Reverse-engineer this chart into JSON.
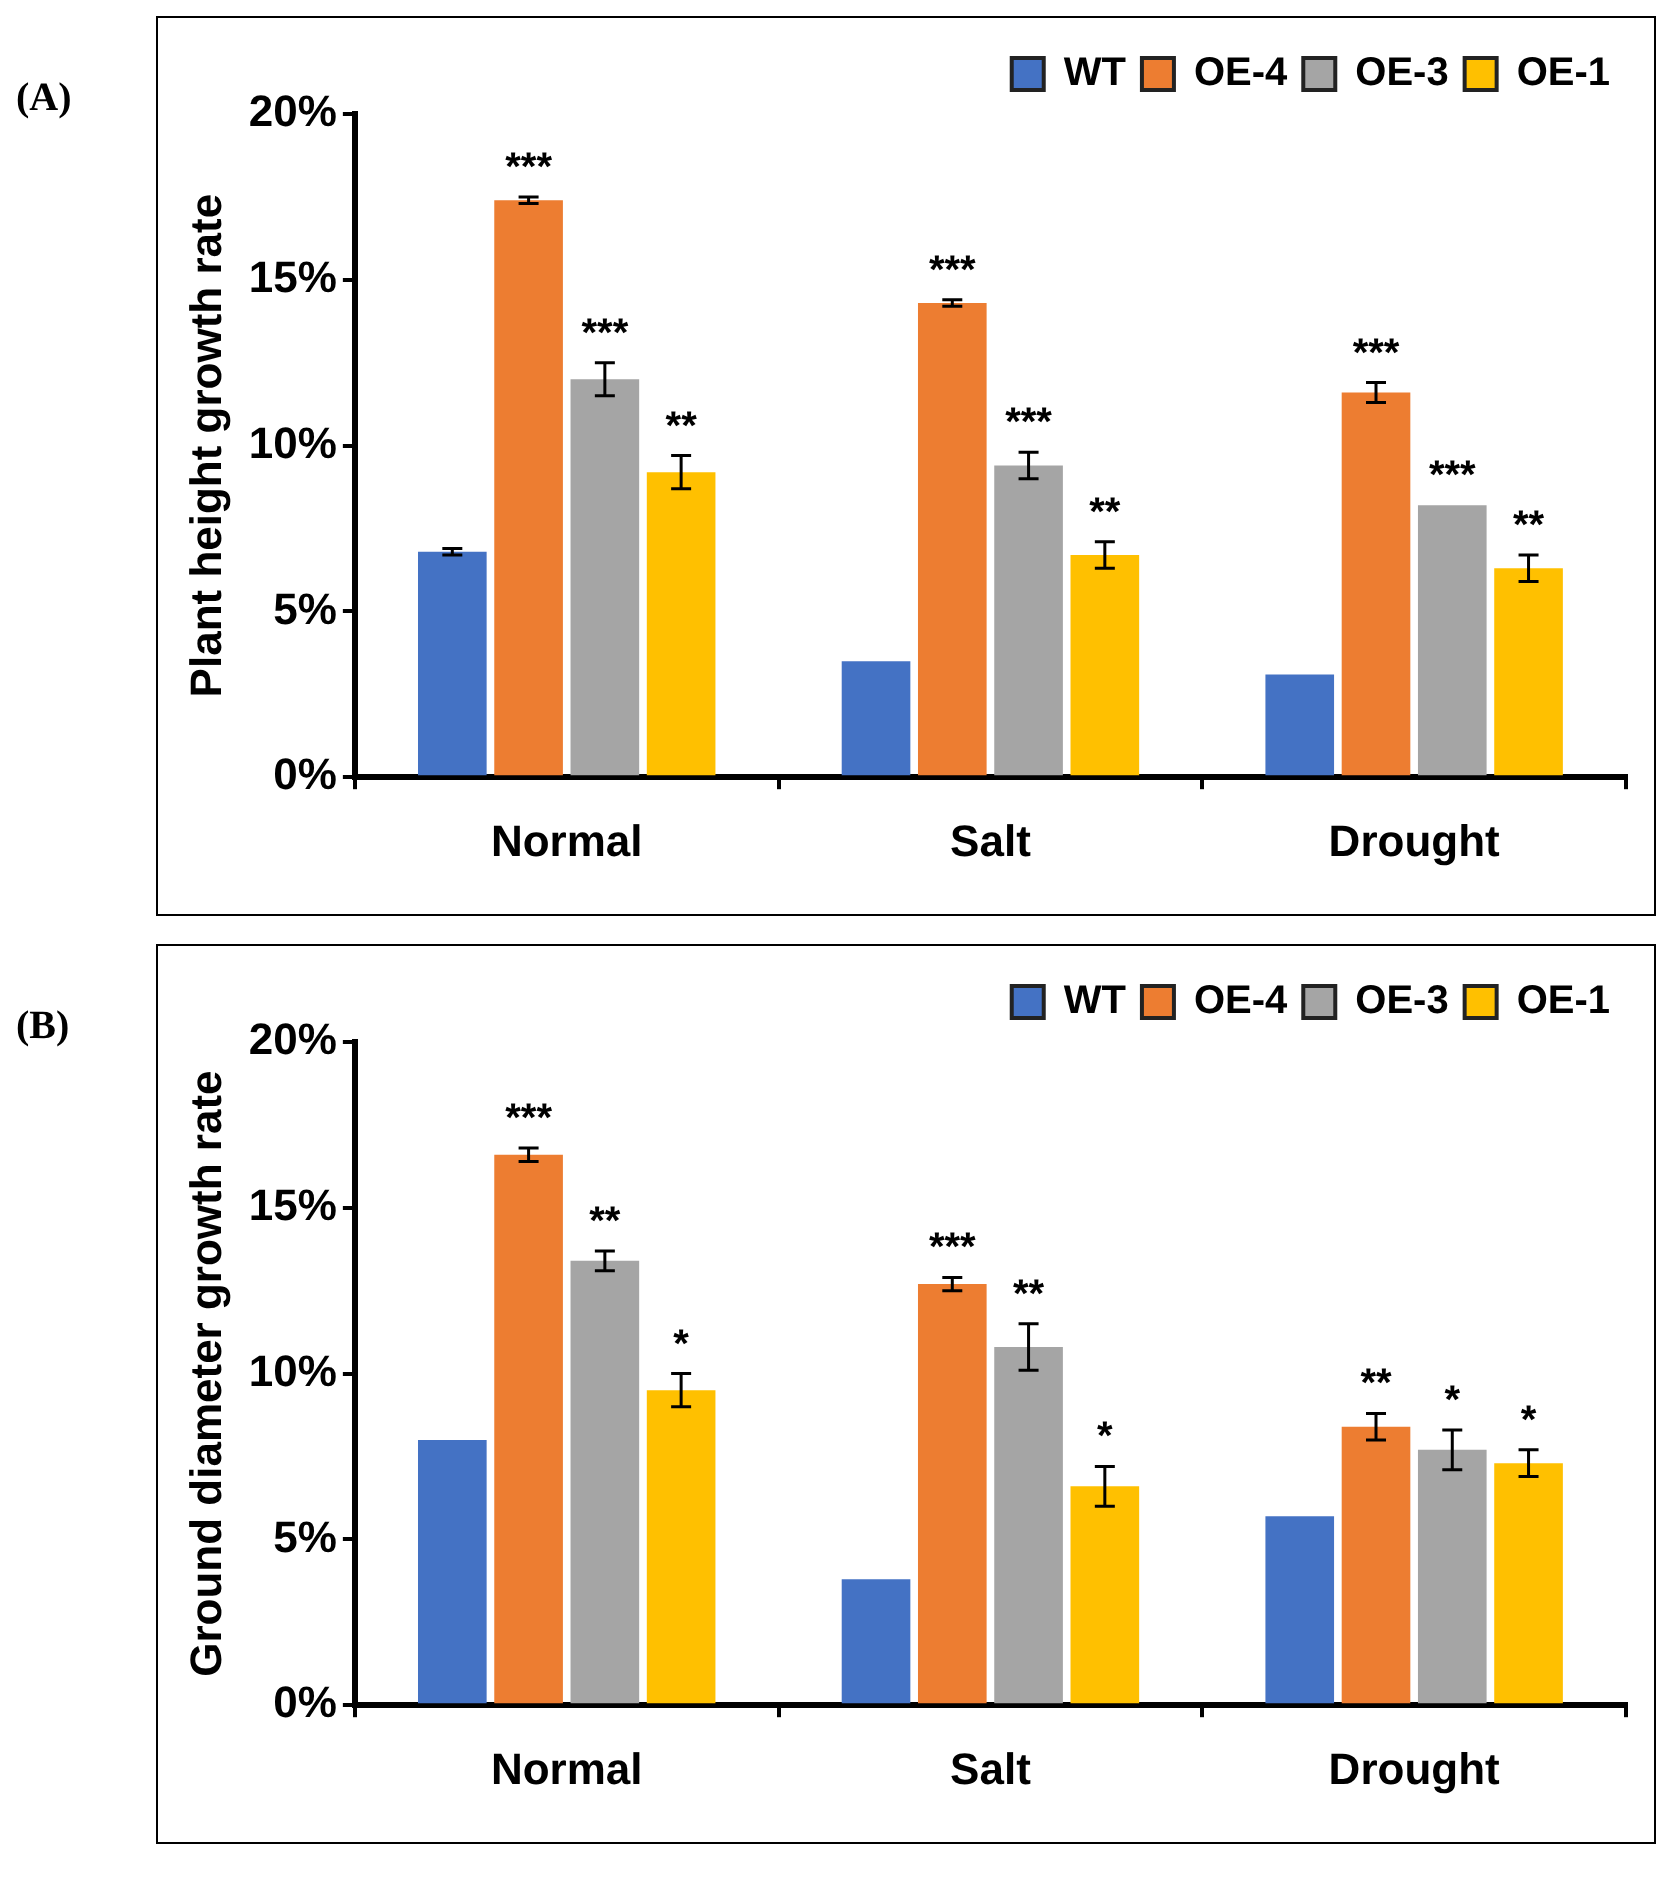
{
  "chart_data": [
    {
      "type": "bar",
      "annotations": [
        "(A)"
      ],
      "ylabel": "Plant height growth rate",
      "categories": [
        "Normal",
        "Salt",
        "Drought"
      ],
      "ylim": [
        0,
        20
      ],
      "yticks": [
        {
          "value": 0,
          "label": "0%"
        },
        {
          "value": 5,
          "label": "5%"
        },
        {
          "value": 10,
          "label": "10%"
        },
        {
          "value": 15,
          "label": "15%"
        },
        {
          "value": 20,
          "label": "20%"
        }
      ],
      "grid": false,
      "legend": "top right",
      "series": [
        {
          "name": "WT",
          "color": "#4472c4",
          "values": [
            6.8,
            3.5,
            3.1
          ],
          "errors": [
            0.1,
            null,
            null
          ],
          "value_labels": [
            null,
            null,
            null
          ]
        },
        {
          "name": "OE-4",
          "color": "#ed7d31",
          "values": [
            17.4,
            14.3,
            11.6
          ],
          "errors": [
            0.1,
            0.1,
            0.3
          ],
          "value_labels": [
            "***",
            "***",
            "***"
          ]
        },
        {
          "name": "OE-3",
          "color": "#a5a5a5",
          "values": [
            12.0,
            9.4,
            8.2
          ],
          "errors": [
            0.5,
            0.4,
            null
          ],
          "value_labels": [
            "***",
            "***",
            "***"
          ]
        },
        {
          "name": "OE-1",
          "color": "#ffc000",
          "values": [
            9.2,
            6.7,
            6.3
          ],
          "errors": [
            0.5,
            0.4,
            0.4
          ],
          "value_labels": [
            "**",
            "**",
            "**"
          ]
        }
      ]
    },
    {
      "type": "bar",
      "annotations": [
        "(B)"
      ],
      "ylabel": "Ground diameter growth rate",
      "categories": [
        "Normal",
        "Salt",
        "Drought"
      ],
      "ylim": [
        0,
        20
      ],
      "yticks": [
        {
          "value": 0,
          "label": "0%"
        },
        {
          "value": 5,
          "label": "5%"
        },
        {
          "value": 10,
          "label": "10%"
        },
        {
          "value": 15,
          "label": "15%"
        },
        {
          "value": 20,
          "label": "20%"
        }
      ],
      "grid": false,
      "legend": "top right",
      "series": [
        {
          "name": "WT",
          "color": "#4472c4",
          "values": [
            8.0,
            3.8,
            5.7
          ],
          "errors": [
            null,
            null,
            null
          ],
          "value_labels": [
            null,
            null,
            null
          ]
        },
        {
          "name": "OE-4",
          "color": "#ed7d31",
          "values": [
            16.6,
            12.7,
            8.4
          ],
          "errors": [
            0.2,
            0.2,
            0.4
          ],
          "value_labels": [
            "***",
            "***",
            "**"
          ]
        },
        {
          "name": "OE-3",
          "color": "#a5a5a5",
          "values": [
            13.4,
            10.8,
            7.7
          ],
          "errors": [
            0.3,
            0.7,
            0.6
          ],
          "value_labels": [
            "**",
            "**",
            "*"
          ]
        },
        {
          "name": "OE-1",
          "color": "#ffc000",
          "values": [
            9.5,
            6.6,
            7.3
          ],
          "errors": [
            0.5,
            0.6,
            0.4
          ],
          "value_labels": [
            "*",
            "*",
            "*"
          ]
        }
      ]
    }
  ]
}
